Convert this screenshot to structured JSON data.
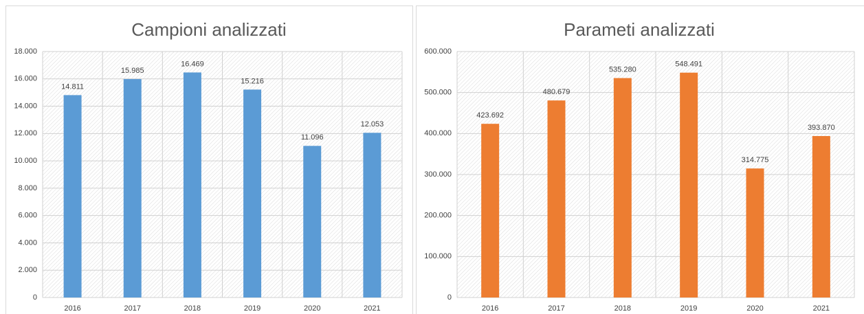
{
  "chart_data": [
    {
      "type": "bar",
      "title": "Campioni analizzati",
      "categories": [
        "2016",
        "2017",
        "2018",
        "2019",
        "2020",
        "2021"
      ],
      "values": [
        14811,
        15985,
        16469,
        15216,
        11096,
        12053
      ],
      "value_labels": [
        "14.811",
        "15.985",
        "16.469",
        "15.216",
        "11.096",
        "12.053"
      ],
      "color": "#5b9bd5",
      "ylim": [
        0,
        18000
      ],
      "yticks": [
        0,
        {
          "value": 2000,
          "label": "2.000"
        },
        {
          "value": 4000,
          "label": "4.000"
        },
        {
          "value": 6000,
          "label": "6.000"
        },
        {
          "value": 8000,
          "label": "8.000"
        },
        {
          "value": 10000,
          "label": "10.000"
        },
        {
          "value": 12000,
          "label": "12.000"
        },
        {
          "value": 14000,
          "label": "14.000"
        },
        {
          "value": 16000,
          "label": "16.000"
        },
        {
          "value": 18000,
          "label": "18.000"
        }
      ],
      "grid": true
    },
    {
      "type": "bar",
      "title": "Parameti analizzati",
      "categories": [
        "2016",
        "2017",
        "2018",
        "2019",
        "2020",
        "2021"
      ],
      "values": [
        423692,
        480679,
        535280,
        548491,
        314775,
        393870
      ],
      "value_labels": [
        "423.692",
        "480.679",
        "535.280",
        "548.491",
        "314.775",
        "393.870"
      ],
      "color": "#ed7d31",
      "ylim": [
        0,
        600000
      ],
      "yticks": [
        0,
        {
          "value": 100000,
          "label": "100.000"
        },
        {
          "value": 200000,
          "label": "200.000"
        },
        {
          "value": 300000,
          "label": "300.000"
        },
        {
          "value": 400000,
          "label": "400.000"
        },
        {
          "value": 500000,
          "label": "500.000"
        },
        {
          "value": 600000,
          "label": "600.000"
        }
      ],
      "grid": true
    }
  ]
}
